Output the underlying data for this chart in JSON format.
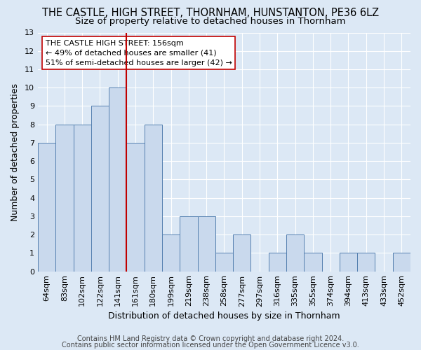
{
  "title": "THE CASTLE, HIGH STREET, THORNHAM, HUNSTANTON, PE36 6LZ",
  "subtitle": "Size of property relative to detached houses in Thornham",
  "xlabel": "Distribution of detached houses by size in Thornham",
  "ylabel": "Number of detached properties",
  "categories": [
    "64sqm",
    "83sqm",
    "102sqm",
    "122sqm",
    "141sqm",
    "161sqm",
    "180sqm",
    "199sqm",
    "219sqm",
    "238sqm",
    "258sqm",
    "277sqm",
    "297sqm",
    "316sqm",
    "335sqm",
    "355sqm",
    "374sqm",
    "394sqm",
    "413sqm",
    "433sqm",
    "452sqm"
  ],
  "values": [
    7,
    8,
    8,
    9,
    10,
    7,
    8,
    2,
    3,
    3,
    1,
    2,
    0,
    1,
    2,
    1,
    0,
    1,
    1,
    0,
    1
  ],
  "bar_color": "#c9d9ed",
  "bar_edge_color": "#5580b0",
  "vline_color": "#c00000",
  "vline_pos": 4.5,
  "annotation_text": "THE CASTLE HIGH STREET: 156sqm\n← 49% of detached houses are smaller (41)\n51% of semi-detached houses are larger (42) →",
  "annotation_box_edge_color": "#c00000",
  "annotation_box_face_color": "#ffffff",
  "ylim": [
    0,
    13
  ],
  "yticks": [
    0,
    1,
    2,
    3,
    4,
    5,
    6,
    7,
    8,
    9,
    10,
    11,
    12,
    13
  ],
  "footer1": "Contains HM Land Registry data © Crown copyright and database right 2024.",
  "footer2": "Contains public sector information licensed under the Open Government Licence v3.0.",
  "background_color": "#dce8f5",
  "plot_background": "#dce8f5",
  "grid_color": "#ffffff",
  "title_fontsize": 10.5,
  "subtitle_fontsize": 9.5,
  "axis_label_fontsize": 9,
  "tick_fontsize": 8,
  "footer_fontsize": 7,
  "ann_fontsize": 8
}
